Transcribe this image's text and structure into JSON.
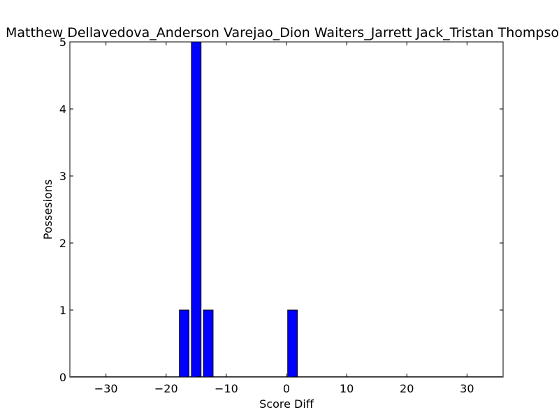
{
  "chart_data": {
    "type": "bar",
    "title": "Matthew Dellavedova_Anderson Varejao_Dion Waiters_Jarrett Jack_Tristan Thompson",
    "xlabel": "Score Diff",
    "ylabel": "Possesions",
    "xlim": [
      -36,
      36
    ],
    "ylim": [
      0,
      5
    ],
    "xticks": [
      -30,
      -20,
      -10,
      0,
      10,
      20,
      30
    ],
    "xtick_labels": [
      "−30",
      "−20",
      "−10",
      "0",
      "10",
      "20",
      "30"
    ],
    "yticks": [
      0,
      1,
      2,
      3,
      4,
      5
    ],
    "ytick_labels": [
      "0",
      "1",
      "2",
      "3",
      "4",
      "5"
    ],
    "bar_width": 1.6,
    "bar_color": "#0000ff",
    "x": [
      -35,
      -34,
      -33,
      -32,
      -31,
      -30,
      -29,
      -28,
      -27,
      -26,
      -25,
      -24,
      -23,
      -22,
      -21,
      -20,
      -19,
      -18,
      -17,
      -16,
      -15,
      -14,
      -13,
      -12,
      -11,
      -10,
      -9,
      -8,
      -7,
      -6,
      -5,
      -4,
      -3,
      -2,
      -1,
      0,
      1,
      2,
      3,
      4,
      5,
      6,
      7,
      8,
      9,
      10,
      11,
      12,
      13,
      14,
      15,
      16,
      17,
      18,
      19,
      20,
      21,
      22,
      23,
      24,
      25,
      26,
      27,
      28,
      29,
      30,
      31,
      32,
      33,
      34,
      35
    ],
    "values": [
      0,
      0,
      0,
      0,
      0,
      0,
      0,
      0,
      0,
      0,
      0,
      0,
      0,
      0,
      0,
      0,
      0,
      0,
      1,
      0,
      5,
      0,
      1,
      0,
      0,
      0,
      0,
      0,
      0,
      0,
      0,
      0,
      0,
      0,
      0,
      0,
      1,
      0,
      0,
      0,
      0,
      0,
      0,
      0,
      0,
      0,
      0,
      0,
      0,
      0,
      0,
      0,
      0,
      0,
      0,
      0,
      0,
      0,
      0,
      0,
      0,
      0,
      0,
      0,
      0,
      0,
      0,
      0,
      0,
      0,
      0
    ]
  }
}
